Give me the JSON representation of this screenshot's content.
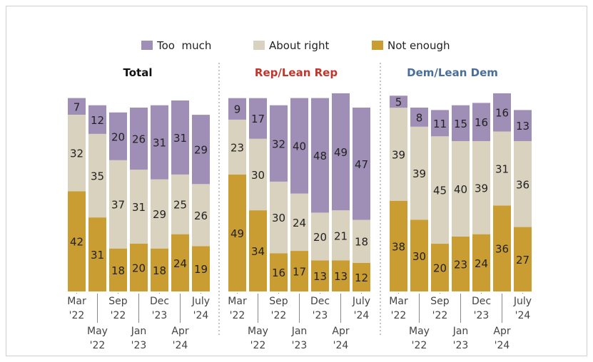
{
  "legend": [
    {
      "label": "Too  much",
      "color": "#9f8fb6"
    },
    {
      "label": "About right",
      "color": "#d8d2bf"
    },
    {
      "label": "Not enough",
      "color": "#c99d32"
    }
  ],
  "chart_data": [
    {
      "type": "bar",
      "stacked": true,
      "title": "Total",
      "title_color": "#111111",
      "categories": [
        [
          "Mar",
          "'22"
        ],
        [
          "May",
          "'22"
        ],
        [
          "Sep",
          "'22"
        ],
        [
          "Jan",
          "'23"
        ],
        [
          "Dec",
          "'23"
        ],
        [
          "Apr",
          "'24"
        ],
        [
          "July",
          "'24"
        ]
      ],
      "series": [
        {
          "name": "Not enough",
          "values": [
            42,
            31,
            18,
            20,
            18,
            24,
            19
          ]
        },
        {
          "name": "About right",
          "values": [
            32,
            35,
            37,
            31,
            29,
            25,
            26
          ]
        },
        {
          "name": "Too  much",
          "values": [
            7,
            12,
            20,
            26,
            31,
            31,
            29
          ]
        }
      ]
    },
    {
      "type": "bar",
      "stacked": true,
      "title": "Rep/Lean Rep",
      "title_color": "#c0362c",
      "categories": [
        [
          "Mar",
          "'22"
        ],
        [
          "May",
          "'22"
        ],
        [
          "Sep",
          "'22"
        ],
        [
          "Jan",
          "'23"
        ],
        [
          "Dec",
          "'23"
        ],
        [
          "Apr",
          "'24"
        ],
        [
          "July",
          "'24"
        ]
      ],
      "series": [
        {
          "name": "Not enough",
          "values": [
            49,
            34,
            16,
            17,
            13,
            13,
            12
          ]
        },
        {
          "name": "About right",
          "values": [
            23,
            30,
            30,
            24,
            20,
            21,
            18
          ]
        },
        {
          "name": "Too  much",
          "values": [
            9,
            17,
            32,
            40,
            48,
            49,
            47
          ]
        }
      ]
    },
    {
      "type": "bar",
      "stacked": true,
      "title": "Dem/Lean Dem",
      "title_color": "#4a6e9a",
      "categories": [
        [
          "Mar",
          "'22"
        ],
        [
          "May",
          "'22"
        ],
        [
          "Sep",
          "'22"
        ],
        [
          "Jan",
          "'23"
        ],
        [
          "Dec",
          "'23"
        ],
        [
          "Apr",
          "'24"
        ],
        [
          "July",
          "'24"
        ]
      ],
      "series": [
        {
          "name": "Not enough",
          "values": [
            38,
            30,
            20,
            23,
            24,
            36,
            27
          ]
        },
        {
          "name": "About right",
          "values": [
            39,
            39,
            45,
            40,
            39,
            31,
            36
          ]
        },
        {
          "name": "Too  much",
          "values": [
            5,
            8,
            11,
            15,
            16,
            16,
            13
          ]
        }
      ]
    }
  ]
}
